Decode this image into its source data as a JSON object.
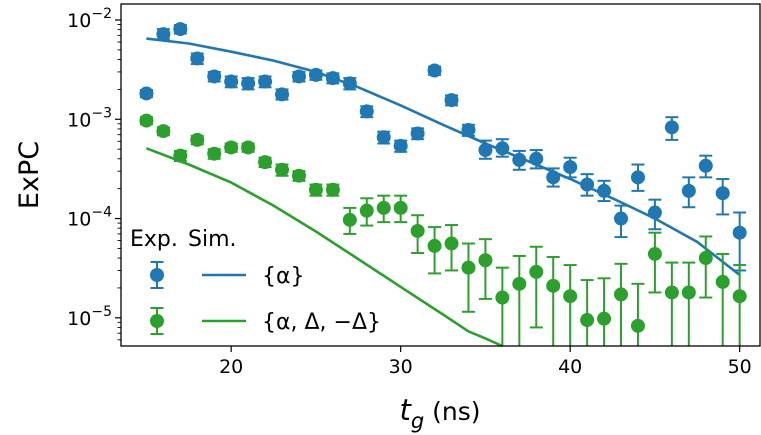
{
  "chart_data": {
    "type": "scatter",
    "title": "",
    "xlabel": "t",
    "xlabel_sub": "g",
    "xlabel_unit": " (ns)",
    "ylabel": "ExPC",
    "x_scale": "linear",
    "y_scale": "log",
    "xlim": [
      13.5,
      51.2
    ],
    "ylim": [
      5.2e-06,
      0.0145
    ],
    "x_ticks": [
      20,
      30,
      40,
      50
    ],
    "y_ticks": [
      {
        "value": 1e-05,
        "mantissa": "10",
        "exponent": "−5"
      },
      {
        "value": 0.0001,
        "mantissa": "10",
        "exponent": "−4"
      },
      {
        "value": 0.001,
        "mantissa": "10",
        "exponent": "−3"
      },
      {
        "value": 0.01,
        "mantissa": "10",
        "exponent": "−2"
      }
    ],
    "grid": false,
    "legend": {
      "position": "bottom-left",
      "header_exp": "Exp.",
      "header_sim": "Sim.",
      "entries": [
        "{α}",
        "{α, Δ, −Δ}"
      ]
    },
    "series": [
      {
        "name": "{α}",
        "color": "#1f77b4",
        "kind": "experiment",
        "points": [
          {
            "x": 15,
            "y": 0.00182,
            "lo": 0.00167,
            "hi": 0.00197
          },
          {
            "x": 16,
            "y": 0.0072,
            "lo": 0.0064,
            "hi": 0.0081
          },
          {
            "x": 17,
            "y": 0.0081,
            "lo": 0.0073,
            "hi": 0.0089
          },
          {
            "x": 18,
            "y": 0.0041,
            "lo": 0.0036,
            "hi": 0.0046
          },
          {
            "x": 19,
            "y": 0.0027,
            "lo": 0.0024,
            "hi": 0.003
          },
          {
            "x": 20,
            "y": 0.0024,
            "lo": 0.0021,
            "hi": 0.0027
          },
          {
            "x": 21,
            "y": 0.0023,
            "lo": 0.002,
            "hi": 0.0026
          },
          {
            "x": 22,
            "y": 0.0024,
            "lo": 0.0021,
            "hi": 0.0027
          },
          {
            "x": 23,
            "y": 0.00178,
            "lo": 0.00158,
            "hi": 0.002
          },
          {
            "x": 24,
            "y": 0.0027,
            "lo": 0.0024,
            "hi": 0.003
          },
          {
            "x": 25,
            "y": 0.0028,
            "lo": 0.0025,
            "hi": 0.0031
          },
          {
            "x": 26,
            "y": 0.0026,
            "lo": 0.0023,
            "hi": 0.0029
          },
          {
            "x": 27,
            "y": 0.0023,
            "lo": 0.002,
            "hi": 0.0026
          },
          {
            "x": 28,
            "y": 0.0012,
            "lo": 0.00105,
            "hi": 0.00135
          },
          {
            "x": 29,
            "y": 0.00066,
            "lo": 0.00057,
            "hi": 0.00075
          },
          {
            "x": 30,
            "y": 0.00054,
            "lo": 0.00047,
            "hi": 0.00061
          },
          {
            "x": 31,
            "y": 0.00072,
            "lo": 0.00063,
            "hi": 0.00081
          },
          {
            "x": 32,
            "y": 0.0031,
            "lo": 0.0028,
            "hi": 0.0034
          },
          {
            "x": 33,
            "y": 0.00156,
            "lo": 0.00138,
            "hi": 0.00174
          },
          {
            "x": 34,
            "y": 0.00078,
            "lo": 0.00068,
            "hi": 0.00088
          },
          {
            "x": 35,
            "y": 0.00049,
            "lo": 0.0004,
            "hi": 0.00061
          },
          {
            "x": 36,
            "y": 0.00051,
            "lo": 0.00042,
            "hi": 0.00063
          },
          {
            "x": 37,
            "y": 0.00039,
            "lo": 0.00031,
            "hi": 0.00048
          },
          {
            "x": 38,
            "y": 0.0004,
            "lo": 0.00032,
            "hi": 0.00049
          },
          {
            "x": 39,
            "y": 0.00026,
            "lo": 0.00021,
            "hi": 0.00032
          },
          {
            "x": 40,
            "y": 0.00033,
            "lo": 0.00026,
            "hi": 0.00041
          },
          {
            "x": 41,
            "y": 0.00022,
            "lo": 0.00017,
            "hi": 0.00028
          },
          {
            "x": 42,
            "y": 0.00019,
            "lo": 0.00015,
            "hi": 0.00024
          },
          {
            "x": 43,
            "y": 0.0001,
            "lo": 6.5e-05,
            "hi": 0.000135
          },
          {
            "x": 44,
            "y": 0.00026,
            "lo": 0.00019,
            "hi": 0.00035
          },
          {
            "x": 45,
            "y": 0.000115,
            "lo": 7.8e-05,
            "hi": 0.000155
          },
          {
            "x": 46,
            "y": 0.00083,
            "lo": 0.00062,
            "hi": 0.00105
          },
          {
            "x": 47,
            "y": 0.00019,
            "lo": 0.00013,
            "hi": 0.00026
          },
          {
            "x": 48,
            "y": 0.00034,
            "lo": 0.00026,
            "hi": 0.00043
          },
          {
            "x": 49,
            "y": 0.00018,
            "lo": 0.00011,
            "hi": 0.00025
          },
          {
            "x": 50,
            "y": 7.2e-05,
            "lo": 3e-05,
            "hi": 0.000115
          }
        ]
      },
      {
        "name": "{α, Δ, −Δ}",
        "color": "#2ca02c",
        "kind": "experiment",
        "points": [
          {
            "x": 15,
            "y": 0.00097,
            "lo": 0.00089,
            "hi": 0.00105
          },
          {
            "x": 16,
            "y": 0.00076,
            "lo": 0.00069,
            "hi": 0.00083
          },
          {
            "x": 17,
            "y": 0.00043,
            "lo": 0.00038,
            "hi": 0.00048
          },
          {
            "x": 18,
            "y": 0.00062,
            "lo": 0.00056,
            "hi": 0.00068
          },
          {
            "x": 19,
            "y": 0.00045,
            "lo": 0.0004,
            "hi": 0.0005
          },
          {
            "x": 20,
            "y": 0.00052,
            "lo": 0.00047,
            "hi": 0.00057
          },
          {
            "x": 21,
            "y": 0.00052,
            "lo": 0.00047,
            "hi": 0.00057
          },
          {
            "x": 22,
            "y": 0.00037,
            "lo": 0.00033,
            "hi": 0.00041
          },
          {
            "x": 23,
            "y": 0.00031,
            "lo": 0.00027,
            "hi": 0.00035
          },
          {
            "x": 24,
            "y": 0.00027,
            "lo": 0.00024,
            "hi": 0.0003
          },
          {
            "x": 25,
            "y": 0.000195,
            "lo": 0.00017,
            "hi": 0.00022
          },
          {
            "x": 26,
            "y": 0.000195,
            "lo": 0.00017,
            "hi": 0.00022
          },
          {
            "x": 27,
            "y": 9.7e-05,
            "lo": 7e-05,
            "hi": 0.000128
          },
          {
            "x": 28,
            "y": 0.00012,
            "lo": 8.5e-05,
            "hi": 0.00016
          },
          {
            "x": 29,
            "y": 0.000128,
            "lo": 9.2e-05,
            "hi": 0.00017
          },
          {
            "x": 30,
            "y": 0.000128,
            "lo": 9.2e-05,
            "hi": 0.00017
          },
          {
            "x": 31,
            "y": 7.5e-05,
            "lo": 4.5e-05,
            "hi": 0.000108
          },
          {
            "x": 32,
            "y": 5.3e-05,
            "lo": 2.8e-05,
            "hi": 8.2e-05
          },
          {
            "x": 33,
            "y": 5.6e-05,
            "lo": 3e-05,
            "hi": 8.6e-05
          },
          {
            "x": 34,
            "y": 3.2e-05,
            "lo": 1.15e-05,
            "hi": 5.6e-05
          },
          {
            "x": 35,
            "y": 3.8e-05,
            "lo": 1.55e-05,
            "hi": 6.2e-05
          },
          {
            "x": 36,
            "y": 1.6e-05,
            "lo": 4e-06,
            "hi": 3.2e-05
          },
          {
            "x": 37,
            "y": 2.2e-05,
            "lo": 4e-06,
            "hi": 4.2e-05
          },
          {
            "x": 38,
            "y": 2.9e-05,
            "lo": 8e-06,
            "hi": 5.2e-05
          },
          {
            "x": 39,
            "y": 2.1e-05,
            "lo": 4e-06,
            "hi": 4.1e-05
          },
          {
            "x": 40,
            "y": 1.65e-05,
            "lo": 4e-06,
            "hi": 3.4e-05
          },
          {
            "x": 41,
            "y": 9.5e-06,
            "lo": 4e-06,
            "hi": 2.4e-05
          },
          {
            "x": 42,
            "y": 9.8e-06,
            "lo": 4e-06,
            "hi": 2.5e-05
          },
          {
            "x": 43,
            "y": 1.72e-05,
            "lo": 4e-06,
            "hi": 3.5e-05
          },
          {
            "x": 44,
            "y": 8.3e-06,
            "lo": 4e-06,
            "hi": 2.2e-05
          },
          {
            "x": 45,
            "y": 4.4e-05,
            "lo": 1.8e-05,
            "hi": 7.2e-05
          },
          {
            "x": 46,
            "y": 1.8e-05,
            "lo": 4e-06,
            "hi": 3.6e-05
          },
          {
            "x": 47,
            "y": 1.8e-05,
            "lo": 4e-06,
            "hi": 3.6e-05
          },
          {
            "x": 48,
            "y": 4e-05,
            "lo": 1.6e-05,
            "hi": 6.6e-05
          },
          {
            "x": 49,
            "y": 2.3e-05,
            "lo": 5e-06,
            "hi": 4.4e-05
          },
          {
            "x": 50,
            "y": 1.65e-05,
            "lo": 4e-06,
            "hi": 3.4e-05
          }
        ]
      }
    ],
    "simulation": [
      {
        "name": "{α}",
        "color": "#1f77b4",
        "x": [
          15,
          17.5,
          20,
          22.5,
          25,
          27.5,
          30,
          32.5,
          35,
          37.5,
          40,
          42.5,
          45,
          47.5,
          50
        ],
        "y": [
          0.0065,
          0.0058,
          0.0048,
          0.0039,
          0.003,
          0.0021,
          0.00138,
          0.00088,
          0.00057,
          0.00038,
          0.00025,
          0.00016,
          0.0001,
          5.8e-05,
          2.7e-05
        ]
      },
      {
        "name": "{α, Δ, −Δ}",
        "color": "#2ca02c",
        "x": [
          15,
          17.5,
          20,
          22.5,
          25,
          27.5,
          30,
          32.5,
          34,
          35,
          36
        ],
        "y": [
          0.00051,
          0.00035,
          0.00023,
          0.000135,
          7.4e-05,
          3.9e-05,
          2.05e-05,
          1.08e-05,
          7.3e-06,
          6.2e-06,
          5.2e-06
        ]
      }
    ]
  }
}
